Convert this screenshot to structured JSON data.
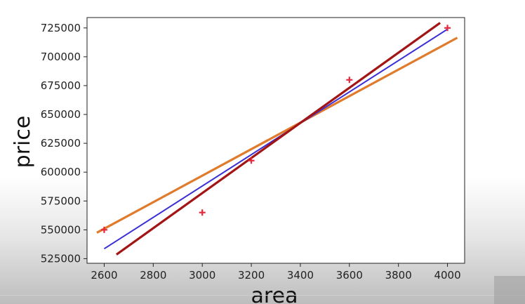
{
  "chart_data": {
    "type": "scatter",
    "xlabel": "area",
    "ylabel": "price",
    "xlim": [
      2530,
      4070
    ],
    "ylim": [
      521000,
      734000
    ],
    "xticks": [
      2600,
      2800,
      3000,
      3200,
      3400,
      3600,
      3800,
      4000
    ],
    "yticks": [
      525000,
      550000,
      575000,
      600000,
      625000,
      650000,
      675000,
      700000,
      725000
    ],
    "grid": false,
    "points": {
      "marker": "+",
      "color": "#e8283c",
      "x": [
        2600,
        3000,
        3200,
        3600,
        4000
      ],
      "y": [
        550000,
        565000,
        610000,
        680000,
        725000
      ]
    },
    "lines": [
      {
        "color": "#e07b2c",
        "x": [
          2570,
          4040
        ],
        "y": [
          547500,
          716500
        ]
      },
      {
        "color": "#3a2fd6",
        "x": [
          2600,
          4000
        ],
        "y": [
          533600,
          723900
        ]
      },
      {
        "color": "#a31515",
        "x": [
          2650,
          3970
        ],
        "y": [
          528600,
          729400
        ]
      }
    ]
  }
}
